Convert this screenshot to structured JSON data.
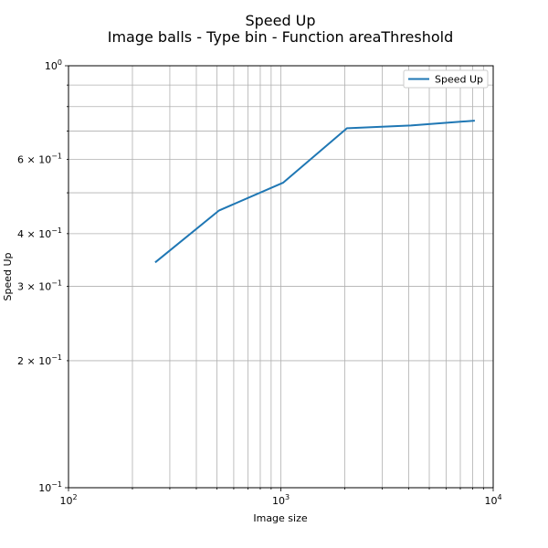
{
  "chart_data": {
    "type": "line",
    "title": "Speed Up",
    "subtitle": "Image balls - Type bin - Function areaThreshold",
    "xlabel": "Image size",
    "ylabel": "Speed Up",
    "xscale": "log",
    "yscale": "log",
    "xlim": [
      100,
      10000
    ],
    "ylim": [
      0.1,
      1.0
    ],
    "grid": "major+minor",
    "legend_position": "top-right",
    "x_ticks": [
      {
        "base": "10",
        "exp": "2"
      },
      {
        "base": "10",
        "exp": "3"
      },
      {
        "base": "10",
        "exp": "4"
      }
    ],
    "y_ticks": [
      {
        "value": 0.1,
        "mant": "",
        "base": "10",
        "exp": "−1"
      },
      {
        "value": 0.2,
        "mant": "2 × ",
        "base": "10",
        "exp": "−1"
      },
      {
        "value": 0.3,
        "mant": "3 × ",
        "base": "10",
        "exp": "−1"
      },
      {
        "value": 0.4,
        "mant": "4 × ",
        "base": "10",
        "exp": "−1"
      },
      {
        "value": 0.6,
        "mant": "6 × ",
        "base": "10",
        "exp": "−1"
      },
      {
        "value": 1.0,
        "mant": "",
        "base": "10",
        "exp": "0"
      }
    ],
    "series": [
      {
        "name": "Speed Up",
        "color": "#1f77b4",
        "x": [
          256,
          512,
          1024,
          2048,
          4096,
          8192
        ],
        "y": [
          0.342,
          0.454,
          0.528,
          0.711,
          0.722,
          0.741
        ]
      }
    ]
  }
}
